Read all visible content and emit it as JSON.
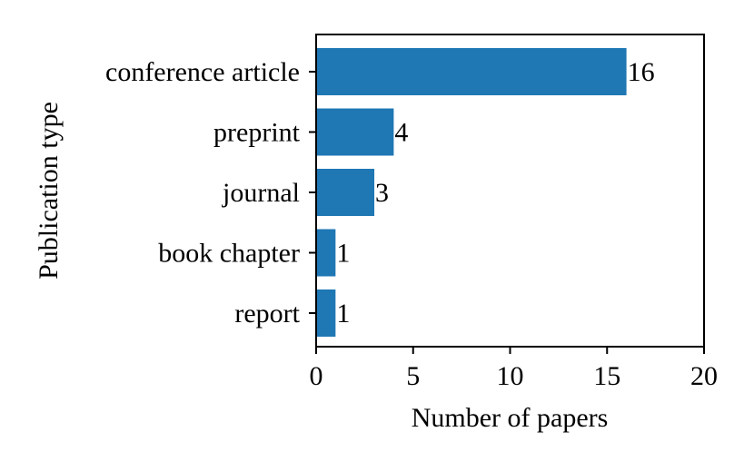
{
  "chart_data": {
    "type": "bar",
    "orientation": "horizontal",
    "categories": [
      "conference article",
      "preprint",
      "journal",
      "book chapter",
      "report"
    ],
    "values": [
      16,
      4,
      3,
      1,
      1
    ],
    "data_labels": [
      "16",
      "4",
      "3",
      "1",
      "1"
    ],
    "title": "",
    "xlabel": "Number of papers",
    "ylabel": "Publication type",
    "xlim": [
      0,
      20
    ],
    "xticks": [
      0,
      5,
      10,
      15,
      20
    ],
    "xtick_labels": [
      "0",
      "5",
      "10",
      "15",
      "20"
    ],
    "grid": false,
    "bar_color": "#1f77b4"
  }
}
